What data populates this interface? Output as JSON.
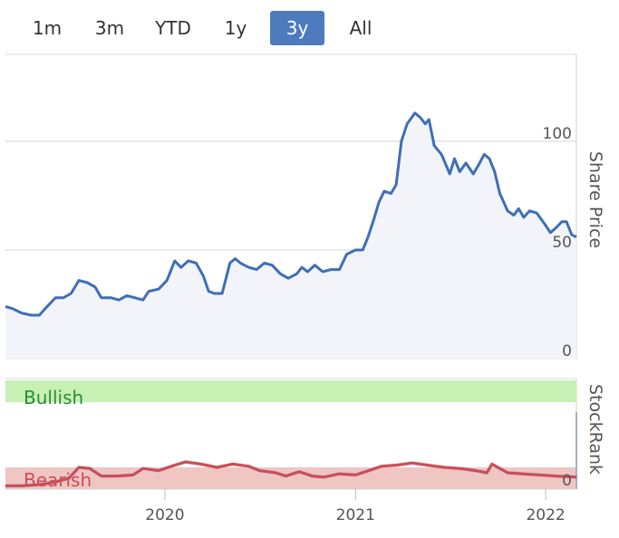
{
  "range_selector": {
    "buttons": [
      {
        "label": "1m"
      },
      {
        "label": "3m"
      },
      {
        "label": "YTD"
      },
      {
        "label": "1y"
      },
      {
        "label": "3y"
      },
      {
        "label": "All"
      }
    ],
    "active": "3y"
  },
  "colors": {
    "price_line": "#3f6fb5",
    "price_fill": "#f3f4f9",
    "rank_line": "#cf4b55",
    "rank_line_grey": "#8fa0b5",
    "bullish_band": "#c6f0b4",
    "bearish_band": "#f0c6c2",
    "bullish_text": "#2e8b3a",
    "bearish_text": "#cf4b55",
    "active_button": "#4e7bbd"
  },
  "chart_data": [
    {
      "type": "area",
      "title": "",
      "ylabel": "Share Price",
      "ylim": [
        0,
        140
      ],
      "yticks": [
        "100",
        "50",
        "0"
      ],
      "ytick_values": [
        100,
        50,
        0
      ],
      "xlim": [
        "2019-03-01",
        "2022-03-01"
      ],
      "series": [
        {
          "points": [
            [
              "2019-03-01",
              24
            ],
            [
              "2019-03-15",
              23
            ],
            [
              "2019-04-01",
              21
            ],
            [
              "2019-04-20",
              20
            ],
            [
              "2019-05-05",
              20
            ],
            [
              "2019-05-20",
              24
            ],
            [
              "2019-06-05",
              28
            ],
            [
              "2019-06-20",
              28
            ],
            [
              "2019-07-05",
              30
            ],
            [
              "2019-07-20",
              36
            ],
            [
              "2019-08-05",
              35
            ],
            [
              "2019-08-20",
              33
            ],
            [
              "2019-09-01",
              28
            ],
            [
              "2019-09-20",
              28
            ],
            [
              "2019-10-05",
              27
            ],
            [
              "2019-10-20",
              29
            ],
            [
              "2019-11-05",
              28
            ],
            [
              "2019-11-20",
              27
            ],
            [
              "2019-12-01",
              31
            ],
            [
              "2019-12-20",
              32
            ],
            [
              "2020-01-05",
              36
            ],
            [
              "2020-01-20",
              45
            ],
            [
              "2020-02-01",
              42
            ],
            [
              "2020-02-15",
              45
            ],
            [
              "2020-03-01",
              44
            ],
            [
              "2020-03-15",
              38
            ],
            [
              "2020-03-25",
              31
            ],
            [
              "2020-04-05",
              30
            ],
            [
              "2020-04-20",
              30
            ],
            [
              "2020-05-05",
              44
            ],
            [
              "2020-05-15",
              46
            ],
            [
              "2020-05-25",
              44
            ],
            [
              "2020-06-10",
              42
            ],
            [
              "2020-06-25",
              41
            ],
            [
              "2020-07-10",
              44
            ],
            [
              "2020-07-25",
              43
            ],
            [
              "2020-08-10",
              39
            ],
            [
              "2020-08-25",
              37
            ],
            [
              "2020-09-10",
              39
            ],
            [
              "2020-09-20",
              42
            ],
            [
              "2020-10-01",
              40
            ],
            [
              "2020-10-15",
              43
            ],
            [
              "2020-10-30",
              40
            ],
            [
              "2020-11-15",
              41
            ],
            [
              "2020-12-01",
              41
            ],
            [
              "2020-12-15",
              48
            ],
            [
              "2021-01-01",
              50
            ],
            [
              "2021-01-15",
              50
            ],
            [
              "2021-01-25",
              56
            ],
            [
              "2021-02-05",
              64
            ],
            [
              "2021-02-15",
              72
            ],
            [
              "2021-02-25",
              77
            ],
            [
              "2021-03-10",
              76
            ],
            [
              "2021-03-20",
              80
            ],
            [
              "2021-03-30",
              100
            ],
            [
              "2021-04-10",
              108
            ],
            [
              "2021-04-25",
              113
            ],
            [
              "2021-05-05",
              111
            ],
            [
              "2021-05-15",
              108
            ],
            [
              "2021-05-22",
              110
            ],
            [
              "2021-06-01",
              98
            ],
            [
              "2021-06-15",
              94
            ],
            [
              "2021-07-01",
              85
            ],
            [
              "2021-07-10",
              92
            ],
            [
              "2021-07-20",
              86
            ],
            [
              "2021-08-01",
              90
            ],
            [
              "2021-08-15",
              85
            ],
            [
              "2021-08-25",
              89
            ],
            [
              "2021-09-05",
              94
            ],
            [
              "2021-09-15",
              92
            ],
            [
              "2021-09-25",
              86
            ],
            [
              "2021-10-05",
              76
            ],
            [
              "2021-10-20",
              68
            ],
            [
              "2021-11-01",
              66
            ],
            [
              "2021-11-10",
              69
            ],
            [
              "2021-11-20",
              65
            ],
            [
              "2021-12-01",
              68
            ],
            [
              "2021-12-15",
              67
            ],
            [
              "2021-12-30",
              62
            ],
            [
              "2022-01-10",
              58
            ],
            [
              "2022-01-20",
              60
            ],
            [
              "2022-02-01",
              63
            ],
            [
              "2022-02-10",
              63
            ],
            [
              "2022-02-20",
              57
            ],
            [
              "2022-03-01",
              56
            ]
          ]
        }
      ]
    },
    {
      "type": "line",
      "title": "",
      "ylabel": "StockRank",
      "ylim": [
        0,
        100
      ],
      "yticks": [
        "0"
      ],
      "ytick_values": [
        0
      ],
      "xticks": [
        "2020",
        "2021",
        "2022"
      ],
      "xtick_values": [
        "2020-01-01",
        "2021-01-01",
        "2022-01-01"
      ],
      "xlim": [
        "2019-03-01",
        "2022-03-01"
      ],
      "bands": [
        {
          "label": "Bullish",
          "from": 80,
          "to": 100
        },
        {
          "label": "Bearish",
          "from": 0,
          "to": 20
        }
      ],
      "series": [
        {
          "points": [
            [
              "2019-03-01",
              3
            ],
            [
              "2019-04-01",
              3
            ],
            [
              "2019-05-01",
              4
            ],
            [
              "2019-06-01",
              6
            ],
            [
              "2019-07-01",
              10
            ],
            [
              "2019-07-20",
              20
            ],
            [
              "2019-08-10",
              19
            ],
            [
              "2019-09-01",
              12
            ],
            [
              "2019-10-01",
              12
            ],
            [
              "2019-11-01",
              13
            ],
            [
              "2019-11-20",
              19
            ],
            [
              "2019-12-20",
              17
            ],
            [
              "2020-01-20",
              22
            ],
            [
              "2020-02-10",
              25
            ],
            [
              "2020-03-10",
              23
            ],
            [
              "2020-04-10",
              20
            ],
            [
              "2020-05-10",
              23
            ],
            [
              "2020-06-10",
              21
            ],
            [
              "2020-07-01",
              17
            ],
            [
              "2020-08-01",
              15
            ],
            [
              "2020-08-20",
              12
            ],
            [
              "2020-09-15",
              16
            ],
            [
              "2020-10-10",
              12
            ],
            [
              "2020-11-01",
              11
            ],
            [
              "2020-12-01",
              14
            ],
            [
              "2021-01-01",
              13
            ],
            [
              "2021-01-20",
              16
            ],
            [
              "2021-02-20",
              21
            ],
            [
              "2021-03-20",
              22
            ],
            [
              "2021-04-20",
              24
            ],
            [
              "2021-05-20",
              22
            ],
            [
              "2021-06-20",
              20
            ],
            [
              "2021-07-20",
              19
            ],
            [
              "2021-08-20",
              17
            ],
            [
              "2021-09-10",
              15
            ],
            [
              "2021-09-20",
              23
            ],
            [
              "2021-10-05",
              19
            ],
            [
              "2021-10-20",
              15
            ],
            [
              "2021-11-20",
              14
            ],
            [
              "2021-12-20",
              13
            ],
            [
              "2022-01-20",
              12
            ],
            [
              "2022-03-01",
              11
            ]
          ]
        }
      ]
    }
  ]
}
